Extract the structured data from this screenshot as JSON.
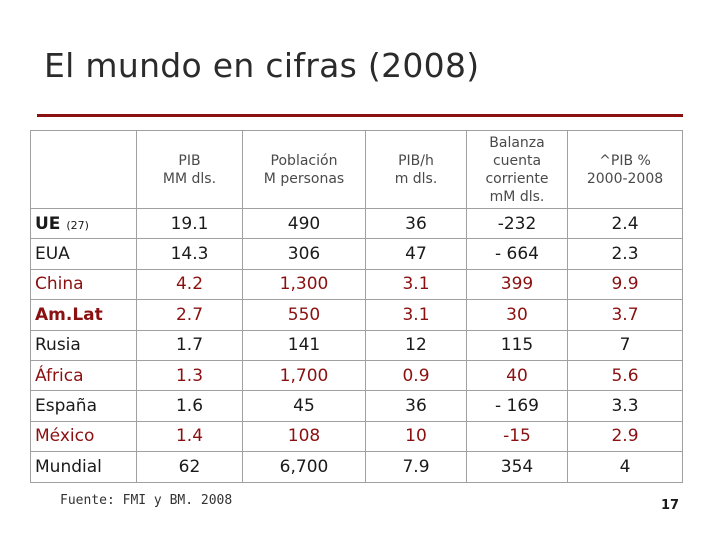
{
  "title": "El mundo en cifras (2008)",
  "colors": {
    "accent": "#8b1010",
    "text": "#1a1a1a"
  },
  "table": {
    "headers": [
      "",
      "PIB\nMM dls.",
      "Población\nM personas",
      "PIB/h\nm dls.",
      "Balanza\ncuenta\ncorriente\nmM dls.",
      "^PIB %\n2000-2008"
    ],
    "rows": [
      {
        "name": "UE",
        "suffix": "(27)",
        "values": [
          "19.1",
          "490",
          "36",
          "-232",
          "2.4"
        ]
      },
      {
        "name": "EUA",
        "suffix": "",
        "values": [
          "14.3",
          "306",
          "47",
          "- 664",
          "2.3"
        ]
      },
      {
        "name": "China",
        "suffix": "",
        "values": [
          "4.2",
          "1,300",
          "3.1",
          "399",
          "9.9"
        ]
      },
      {
        "name": "Am.Lat",
        "suffix": "",
        "values": [
          "2.7",
          "550",
          "3.1",
          "30",
          "3.7"
        ]
      },
      {
        "name": "Rusia",
        "suffix": "",
        "values": [
          "1.7",
          "141",
          "12",
          "115",
          "7"
        ]
      },
      {
        "name": "África",
        "suffix": "",
        "values": [
          "1.3",
          "1,700",
          "0.9",
          "40",
          "5.6"
        ]
      },
      {
        "name": "España",
        "suffix": "",
        "values": [
          "1.6",
          "45",
          "36",
          "- 169",
          "3.3"
        ]
      },
      {
        "name": "México",
        "suffix": "",
        "values": [
          "1.4",
          "108",
          "10",
          "-15",
          "2.9"
        ]
      },
      {
        "name": "Mundial",
        "suffix": "",
        "values": [
          "62",
          "6,700",
          "7.9",
          "354",
          "4"
        ]
      }
    ]
  },
  "source": "Fuente: FMI y BM.  2008",
  "page_number": "17"
}
